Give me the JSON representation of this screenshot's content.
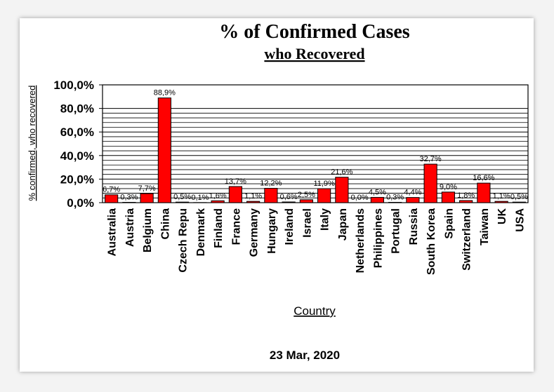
{
  "chart_data": {
    "type": "bar",
    "title": "% of Confirmed Cases",
    "subtitle": "who Recovered",
    "xlabel": "Country",
    "ylabel": "% confirmed, who recovered",
    "footer": "23 Mar, 2020",
    "ylim": [
      0,
      100
    ],
    "yticks": [
      "0,0%",
      "20,0%",
      "40,0%",
      "60,0%",
      "80,0%",
      "100,0%"
    ],
    "grid": true,
    "bar_color": "#ff0000",
    "categories": [
      "Australia",
      "Austria",
      "Belgium",
      "China",
      "Czech Repu",
      "Denmark",
      "Finland",
      "France",
      "Germany",
      "Hungary",
      "Ireland",
      "Israel",
      "Italy",
      "Japan",
      "Netherlands",
      "Philippines",
      "Portugal",
      "Russia",
      "South Korea",
      "Spain",
      "Switzerland",
      "Taiwan",
      "UK",
      "USA"
    ],
    "values": [
      6.7,
      0.3,
      7.7,
      88.9,
      0.5,
      0.1,
      1.6,
      13.7,
      1.1,
      12.2,
      0.6,
      2.5,
      11.9,
      21.6,
      0.0,
      4.5,
      0.3,
      4.4,
      32.7,
      9.0,
      1.8,
      16.6,
      1.1,
      0.5
    ],
    "labels": [
      "6,7%",
      "0,3%",
      "7,7%",
      "88,9%",
      "0,5%",
      "0,1%",
      "1,6%",
      "13,7%",
      "1,1%",
      "12,2%",
      "0,6%",
      "2,5%",
      "11,9%",
      "21,6%",
      "0,0%",
      "4,5%",
      "0,3%",
      "4,4%",
      "32,7%",
      "9,0%",
      "1,8%",
      "16,6%",
      "1,1%",
      "0,5%"
    ]
  }
}
